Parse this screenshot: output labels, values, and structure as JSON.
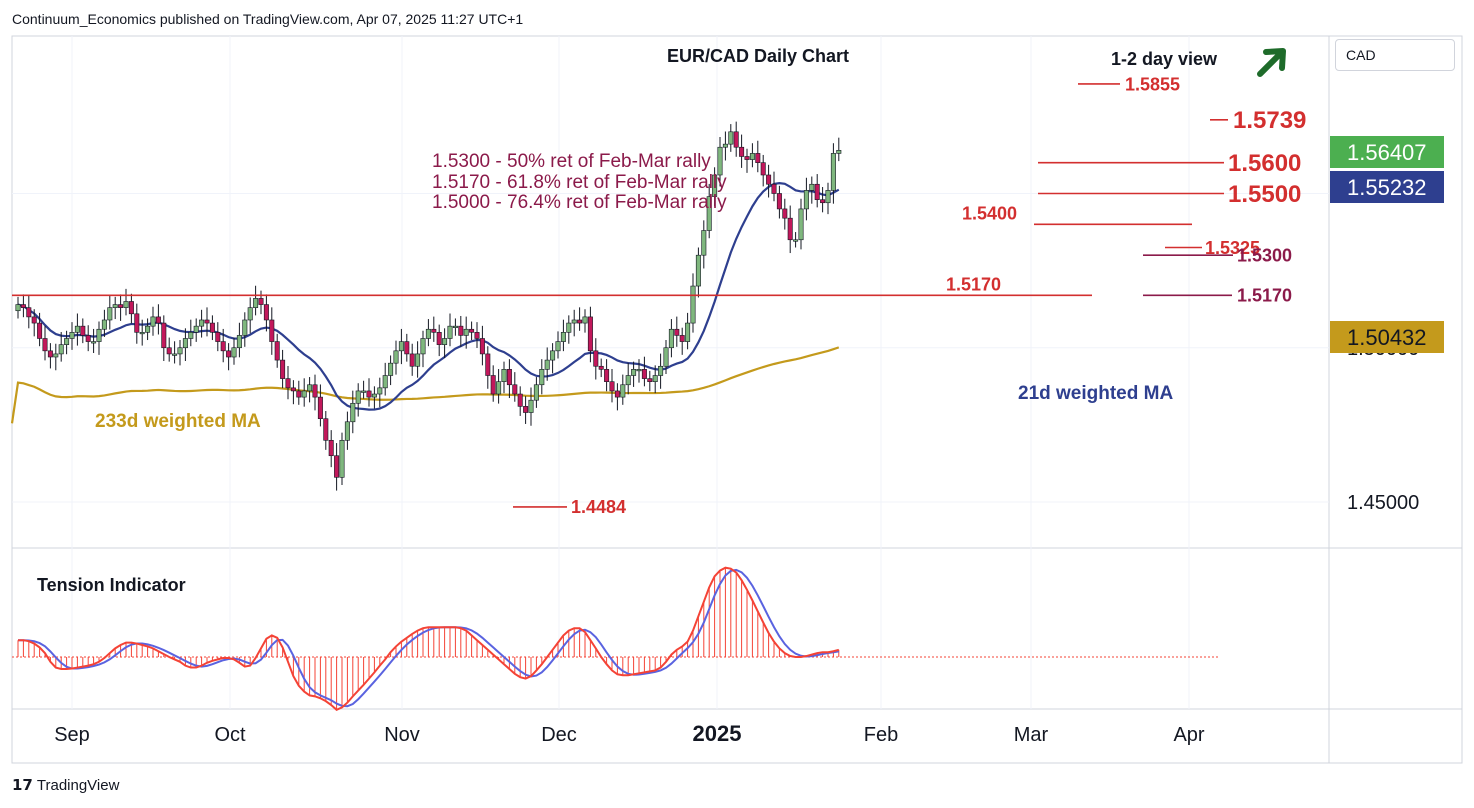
{
  "header": {
    "publisher": "Continuum_Economics published on TradingView.com, Apr 07, 2025 11:27 UTC+1"
  },
  "currency_selector": {
    "label": "CAD"
  },
  "footer": {
    "brand": "TradingView"
  },
  "colors": {
    "up_candle": "#7fb77e",
    "down_candle": "#c2185b",
    "level_red": "#d32f2f",
    "ma21": "#2e3f8f",
    "ma233": "#c49a1c",
    "retracement_text": "#8b1a4a",
    "arrow": "#1e6b2a",
    "tension_fast": "#f44336",
    "tension_slow": "#5a63e0"
  },
  "chart_data": {
    "type": "candlestick",
    "title": "EUR/CAD Daily Chart",
    "view_label": "1-2 day view",
    "view_direction": "up",
    "currency": "CAD",
    "x_ticks": [
      "Sep",
      "Oct",
      "Nov",
      "Dec",
      "2025",
      "Feb",
      "Mar",
      "Apr"
    ],
    "y_ticks": [
      "1.45000",
      "1.50000"
    ],
    "price_labels": [
      {
        "value": "1.56407",
        "color": "#4caf50"
      },
      {
        "value": "1.55232",
        "color": "#2e3f8f"
      },
      {
        "value": "1.50432",
        "color": "#c49a1c"
      }
    ],
    "levels": [
      {
        "label": "1.5855",
        "price": 1.5855
      },
      {
        "label": "1.5739",
        "price": 1.5739
      },
      {
        "label": "1.5600",
        "price": 1.56
      },
      {
        "label": "1.5500",
        "price": 1.55
      },
      {
        "label": "1.5400",
        "price": 1.54
      },
      {
        "label": "1.5325",
        "price": 1.5325
      },
      {
        "label": "1.5300",
        "price": 1.53
      },
      {
        "label": "1.5170",
        "price": 1.517
      },
      {
        "label": "1.5170",
        "price": 1.517
      },
      {
        "label": "1.4484",
        "price": 1.4484
      }
    ],
    "retracements": [
      "1.5300 - 50% ret of Feb-Mar rally",
      "1.5170 - 61.8% ret of Feb-Mar rally",
      "1.5000 - 76.4% ret of Feb-Mar rally"
    ],
    "series_labels": {
      "ma21": "21d weighted MA",
      "ma233": "233d weighted MA"
    },
    "close_series": [
      1.514,
      1.513,
      1.51,
      1.508,
      1.503,
      1.499,
      1.497,
      1.498,
      1.501,
      1.503,
      1.505,
      1.507,
      1.504,
      1.502,
      1.502,
      1.506,
      1.509,
      1.513,
      1.514,
      1.513,
      1.515,
      1.511,
      1.505,
      1.505,
      1.507,
      1.51,
      1.508,
      1.5,
      1.498,
      1.498,
      1.5,
      1.503,
      1.505,
      1.507,
      1.509,
      1.508,
      1.505,
      1.502,
      1.499,
      1.497,
      1.5,
      1.504,
      1.509,
      1.513,
      1.516,
      1.514,
      1.509,
      1.502,
      1.496,
      1.49,
      1.487,
      1.486,
      1.484,
      1.486,
      1.488,
      1.484,
      1.477,
      1.47,
      1.465,
      1.458,
      1.47,
      1.476,
      1.482,
      1.486,
      1.486,
      1.484,
      1.485,
      1.487,
      1.491,
      1.495,
      1.499,
      1.502,
      1.498,
      1.494,
      1.498,
      1.503,
      1.506,
      1.505,
      1.501,
      1.503,
      1.507,
      1.507,
      1.504,
      1.506,
      1.505,
      1.503,
      1.498,
      1.491,
      1.485,
      1.489,
      1.493,
      1.488,
      1.485,
      1.481,
      1.479,
      1.483,
      1.488,
      1.493,
      1.496,
      1.499,
      1.502,
      1.505,
      1.508,
      1.509,
      1.508,
      1.51,
      1.499,
      1.494,
      1.493,
      1.489,
      1.486,
      1.484,
      1.488,
      1.491,
      1.493,
      1.493,
      1.49,
      1.489,
      1.491,
      1.494,
      1.5,
      1.506,
      1.504,
      1.502,
      1.508,
      1.52,
      1.53,
      1.538,
      1.549,
      1.556,
      1.565,
      1.566,
      1.57,
      1.565,
      1.562,
      1.561,
      1.563,
      1.56,
      1.556,
      1.553,
      1.55,
      1.545,
      1.542,
      1.535,
      1.535,
      1.545,
      1.551,
      1.553,
      1.548,
      1.547,
      1.551,
      1.563,
      1.564
    ],
    "ylim": [
      1.436,
      1.596
    ],
    "tension_indicator": {
      "label": "Tension Indicator",
      "fast": [
        0.35,
        0.35,
        0.33,
        0.28,
        0.2,
        0.08,
        -0.1,
        -0.22,
        -0.25,
        -0.25,
        -0.24,
        -0.22,
        -0.2,
        -0.18,
        -0.15,
        -0.1,
        -0.02,
        0.08,
        0.18,
        0.25,
        0.3,
        0.3,
        0.28,
        0.25,
        0.22,
        0.18,
        0.12,
        0.06,
        0.0,
        -0.05,
        -0.1,
        -0.18,
        -0.22,
        -0.22,
        -0.18,
        -0.12,
        -0.08,
        -0.05,
        -0.02,
        -0.02,
        -0.05,
        -0.12,
        -0.2,
        -0.18,
        -0.02,
        0.18,
        0.38,
        0.45,
        0.4,
        0.2,
        -0.1,
        -0.4,
        -0.6,
        -0.72,
        -0.8,
        -0.82,
        -0.86,
        -0.92,
        -1.0,
        -1.1,
        -1.05,
        -0.95,
        -0.82,
        -0.7,
        -0.58,
        -0.45,
        -0.32,
        -0.18,
        -0.05,
        0.1,
        0.22,
        0.32,
        0.4,
        0.48,
        0.55,
        0.6,
        0.62,
        0.62,
        0.62,
        0.62,
        0.62,
        0.62,
        0.6,
        0.55,
        0.45,
        0.35,
        0.25,
        0.15,
        0.05,
        -0.05,
        -0.15,
        -0.25,
        -0.35,
        -0.42,
        -0.45,
        -0.4,
        -0.28,
        -0.15,
        0.0,
        0.15,
        0.3,
        0.45,
        0.55,
        0.6,
        0.6,
        0.52,
        0.35,
        0.18,
        0.0,
        -0.15,
        -0.28,
        -0.36,
        -0.38,
        -0.38,
        -0.36,
        -0.34,
        -0.32,
        -0.3,
        -0.28,
        -0.22,
        -0.1,
        0.05,
        0.15,
        0.22,
        0.32,
        0.55,
        0.85,
        1.15,
        1.45,
        1.68,
        1.8,
        1.86,
        1.84,
        1.76,
        1.6,
        1.4,
        1.18,
        0.95,
        0.72,
        0.5,
        0.32,
        0.18,
        0.08,
        0.02,
        0.0,
        0.0,
        0.02,
        0.05,
        0.08,
        0.1,
        0.1,
        0.12,
        0.15
      ]
    }
  }
}
